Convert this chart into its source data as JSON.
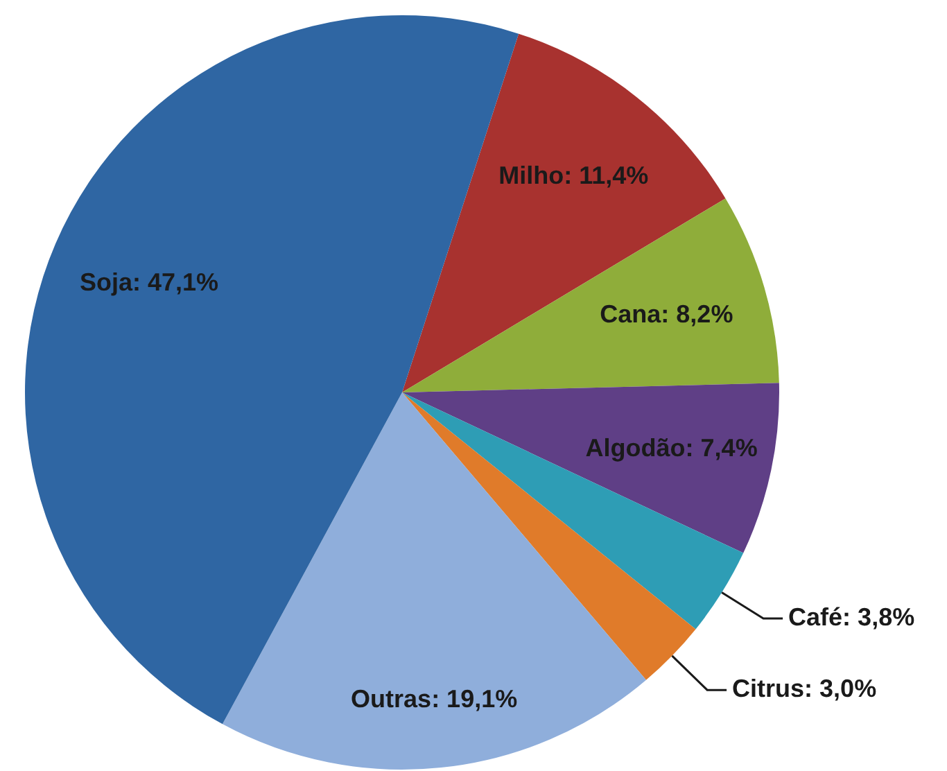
{
  "chart_data": {
    "type": "pie",
    "categories": [
      "Milho",
      "Cana",
      "Algodão",
      "Café",
      "Citrus",
      "Outras",
      "Soja"
    ],
    "values": [
      11.4,
      8.2,
      7.4,
      3.8,
      3.0,
      19.1,
      47.1
    ],
    "colors": [
      "#a8322f",
      "#8fad3a",
      "#5f3f86",
      "#2e9db5",
      "#e07b2a",
      "#8faedb",
      "#2f66a3"
    ],
    "value_labels": [
      "11,4%",
      "8,2%",
      "7,4%",
      "3,8%",
      "3,0%",
      "19,1%",
      "47,1%"
    ],
    "legend": false
  }
}
